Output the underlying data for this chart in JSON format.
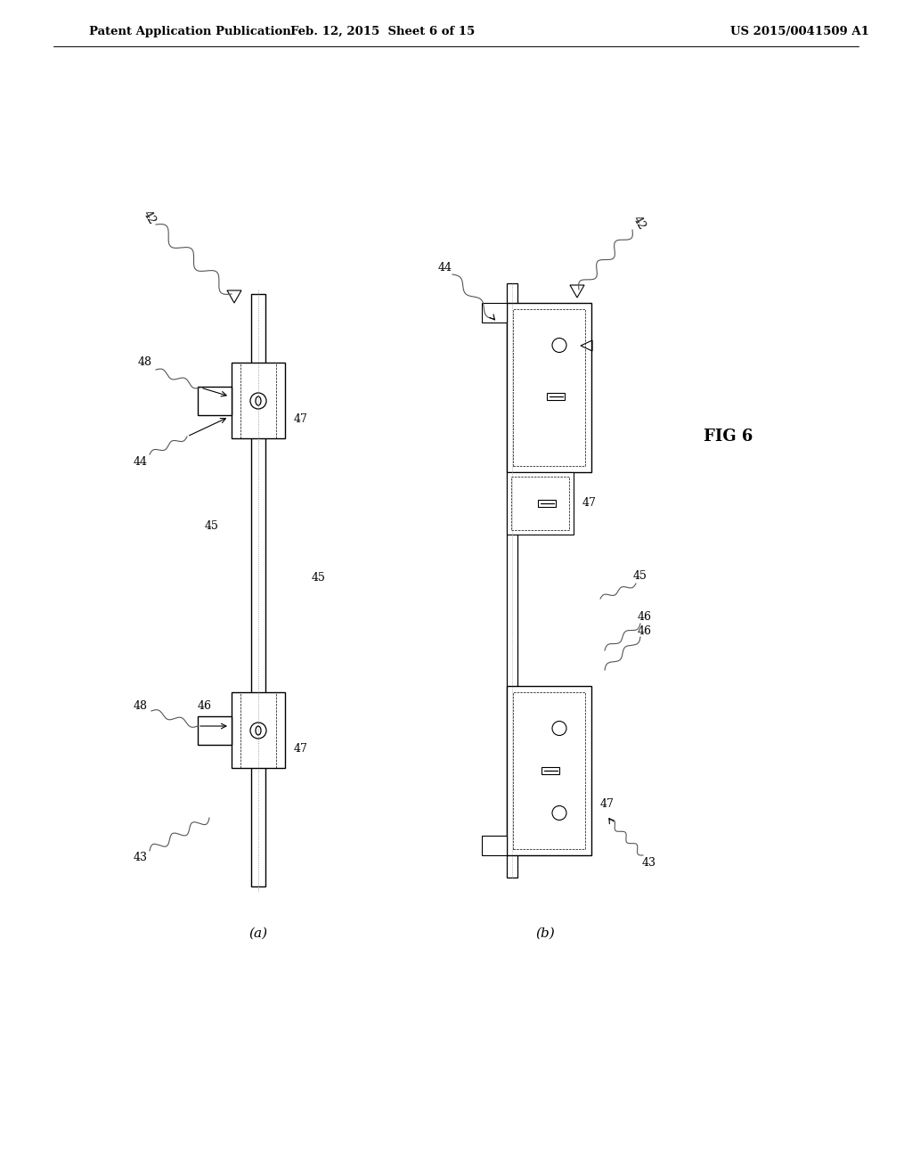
{
  "title_left": "Patent Application Publication",
  "title_mid": "Feb. 12, 2015  Sheet 6 of 15",
  "title_right": "US 2015/0041509 A1",
  "fig_label": "FIG 6",
  "sub_a": "(a)",
  "sub_b": "(b)",
  "bg_color": "#ffffff",
  "line_color": "#000000",
  "light_line_color": "#aaaaaa",
  "ref_nums": [
    "42",
    "43",
    "44",
    "45",
    "46",
    "47",
    "48"
  ]
}
